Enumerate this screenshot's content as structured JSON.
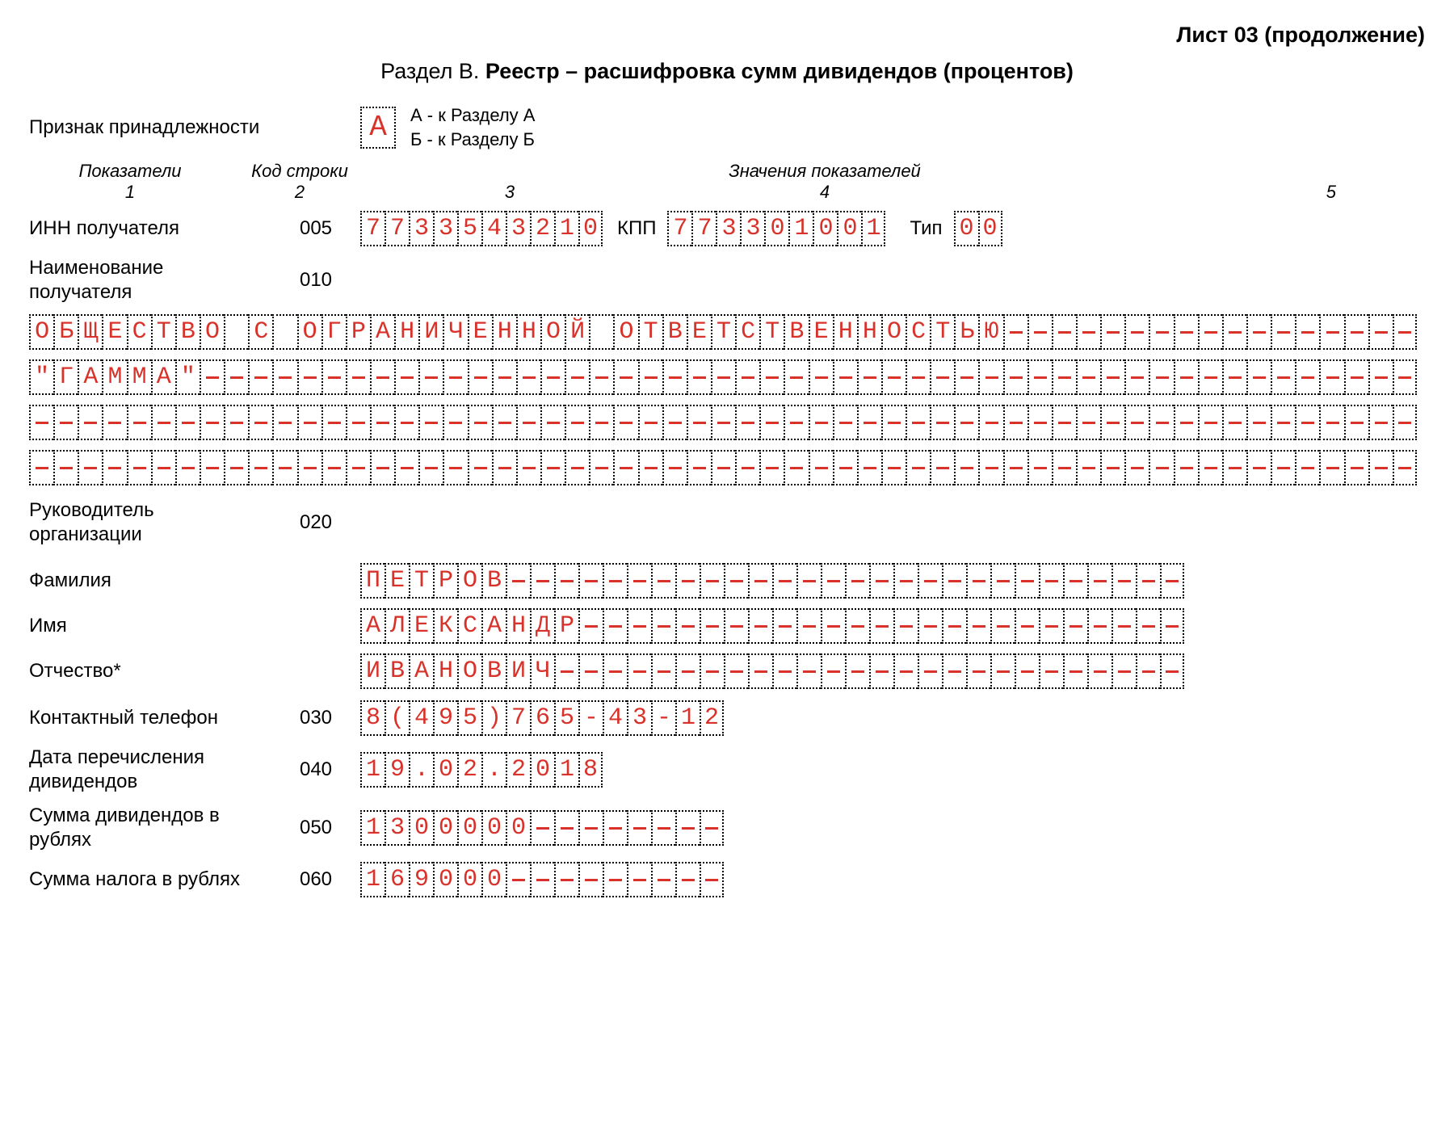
{
  "colors": {
    "ink": "#000000",
    "fill_text": "#d8322a",
    "background": "#ffffff"
  },
  "cell_style": {
    "border": "2px dotted #000000",
    "font_family": "Courier New",
    "text_color": "#d8322a"
  },
  "header": {
    "top_right": "Лист 03 (продолжение)",
    "section_prefix": "Раздел В. ",
    "section_bold": "Реестр – расшифровка сумм дивидендов (процентов)"
  },
  "affiliation": {
    "label": "Признак принадлежности",
    "value_chars": [
      "А"
    ],
    "legend_a": "А - к Разделу А",
    "legend_b": "Б - к Разделу Б"
  },
  "column_headers": {
    "c1_a": "Показатели",
    "c1_b": "1",
    "c2_a": "Код строки",
    "c2_b": "2",
    "c3_a": "",
    "c3_b": "3",
    "mid_a": "Значения показателей",
    "c4_b": "4",
    "c5_b": "5"
  },
  "rows": {
    "inn": {
      "label": "ИНН получателя",
      "code": "005",
      "inn_chars": [
        "7",
        "7",
        "3",
        "3",
        "5",
        "4",
        "3",
        "2",
        "1",
        "0"
      ],
      "kpp_label": "КПП",
      "kpp_chars": [
        "7",
        "7",
        "3",
        "3",
        "0",
        "1",
        "0",
        "0",
        "1"
      ],
      "tip_label": "Тип",
      "tip_chars": [
        "0",
        "0"
      ]
    },
    "name": {
      "label": "Наименование получателя",
      "code": "010",
      "line_length": 57,
      "line1": "ОБЩЕСТВО С ОГРАНИЧЕННОЙ ОТВЕТСТВЕННОСТЬЮ",
      "line2": "\"ГАММА\"",
      "line3": "",
      "line4": ""
    },
    "head": {
      "label": "Руководитель организации",
      "code": "020"
    },
    "surname": {
      "label": "Фамилия",
      "value": "ПЕТРОВ",
      "length": 34
    },
    "firstname": {
      "label": "Имя",
      "value": "АЛЕКСАНДР",
      "length": 34
    },
    "patronymic": {
      "label": "Отчество*",
      "value": "ИВАНОВИЧ",
      "length": 34
    },
    "phone": {
      "label": "Контактный телефон",
      "code": "030",
      "value": "8(495)765-43-12",
      "length": 15
    },
    "date": {
      "label": "Дата перечисления дивидендов",
      "code": "040",
      "value": "19.02.2018",
      "length": 10
    },
    "sum_div": {
      "label": "Сумма дивидендов в рублях",
      "code": "050",
      "value": "1300000",
      "length": 15
    },
    "sum_tax": {
      "label": "Сумма налога в рублях",
      "code": "060",
      "value": "169000",
      "length": 15
    }
  }
}
